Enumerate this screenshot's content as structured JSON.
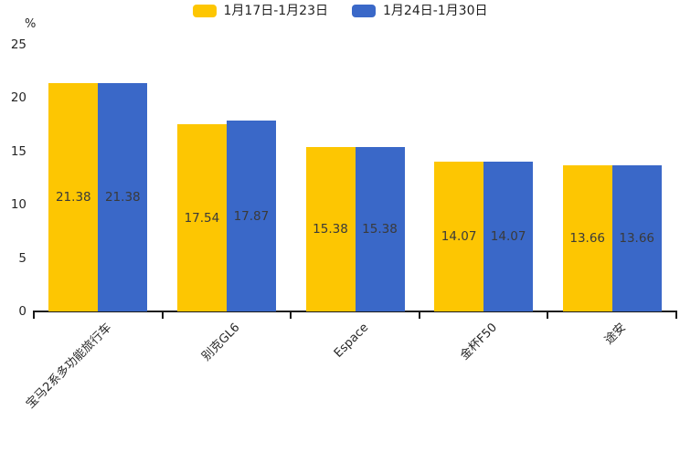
{
  "chart_data": {
    "type": "bar",
    "title": "",
    "ylabel": "%",
    "xlabel": "",
    "categories": [
      "宝马2系多功能旅行车",
      "别克GL6",
      "Espace",
      "金杯F50",
      "途安"
    ],
    "series": [
      {
        "name": "1月17日-1月23日",
        "color": "#FDC602",
        "values": [
          21.38,
          17.54,
          15.38,
          14.07,
          13.66
        ]
      },
      {
        "name": "1月24日-1月30日",
        "color": "#3A68C8",
        "values": [
          21.38,
          17.87,
          15.38,
          14.07,
          13.66
        ]
      }
    ],
    "ylim": [
      0,
      25
    ],
    "yticks": [
      0,
      5,
      10,
      15,
      20,
      25
    ],
    "grid": false,
    "legend_position": "top-center",
    "value_labels": "inside-middle",
    "axis_color": "#1a1a1a",
    "text_color": "#262626"
  }
}
